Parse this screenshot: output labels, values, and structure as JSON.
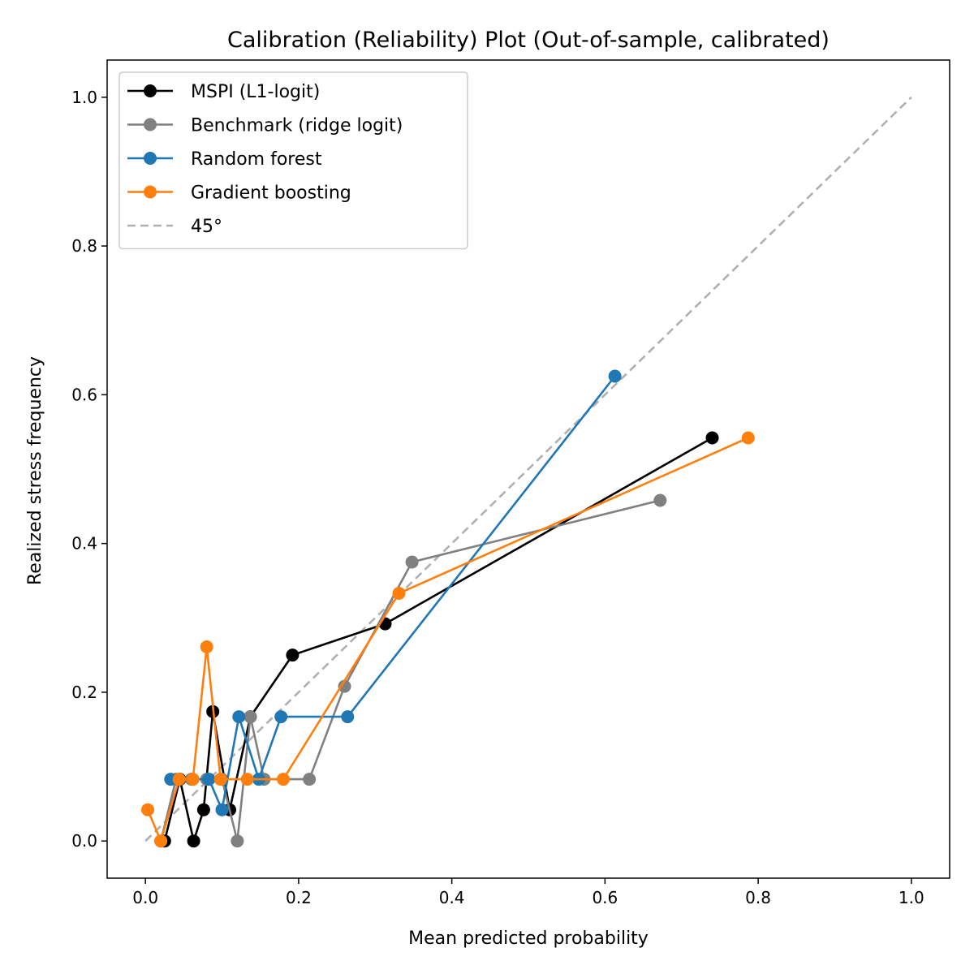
{
  "chart_data": {
    "type": "line",
    "title": "Calibration (Reliability) Plot (Out-of-sample, calibrated)",
    "xlabel": "Mean predicted probability",
    "ylabel": "Realized stress frequency",
    "xlim": [
      -0.05,
      1.05
    ],
    "ylim": [
      -0.05,
      1.05
    ],
    "xticks": [
      "0.0",
      "0.2",
      "0.4",
      "0.6",
      "0.8",
      "1.0"
    ],
    "yticks": [
      "0.0",
      "0.2",
      "0.4",
      "0.6",
      "0.8",
      "1.0"
    ],
    "grid": false,
    "legend_position": "upper-left",
    "series": [
      {
        "name": "MSPI (L1-logit)",
        "color": "#000000",
        "style": "solid-marker",
        "x": [
          0.025,
          0.045,
          0.063,
          0.076,
          0.088,
          0.11,
          0.137,
          0.192,
          0.313,
          0.74
        ],
        "y": [
          0.0,
          0.083,
          0.0,
          0.042,
          0.174,
          0.042,
          0.167,
          0.25,
          0.292,
          0.542
        ]
      },
      {
        "name": "Benchmark (ridge logit)",
        "color": "#808080",
        "style": "solid-marker",
        "x": [
          0.02,
          0.04,
          0.06,
          0.08,
          0.1,
          0.12,
          0.137,
          0.155,
          0.214,
          0.26,
          0.348,
          0.672
        ],
        "y": [
          0.0,
          0.083,
          0.083,
          0.083,
          0.083,
          0.0,
          0.167,
          0.083,
          0.083,
          0.208,
          0.375,
          0.458
        ]
      },
      {
        "name": "Random forest",
        "color": "#1f77b4",
        "style": "solid-marker",
        "x": [
          0.033,
          0.083,
          0.1,
          0.122,
          0.148,
          0.177,
          0.264,
          0.613
        ],
        "y": [
          0.083,
          0.083,
          0.042,
          0.167,
          0.083,
          0.167,
          0.167,
          0.625
        ]
      },
      {
        "name": "Gradient boosting",
        "color": "#ff7f0e",
        "style": "solid-marker",
        "x": [
          0.003,
          0.02,
          0.044,
          0.062,
          0.08,
          0.098,
          0.133,
          0.18,
          0.331,
          0.787
        ],
        "y": [
          0.042,
          0.0,
          0.083,
          0.083,
          0.261,
          0.083,
          0.083,
          0.083,
          0.333,
          0.542
        ]
      },
      {
        "name": "45°",
        "color": "#b0b0b0",
        "style": "dashed",
        "x": [
          0.0,
          1.0
        ],
        "y": [
          0.0,
          1.0
        ]
      }
    ]
  }
}
